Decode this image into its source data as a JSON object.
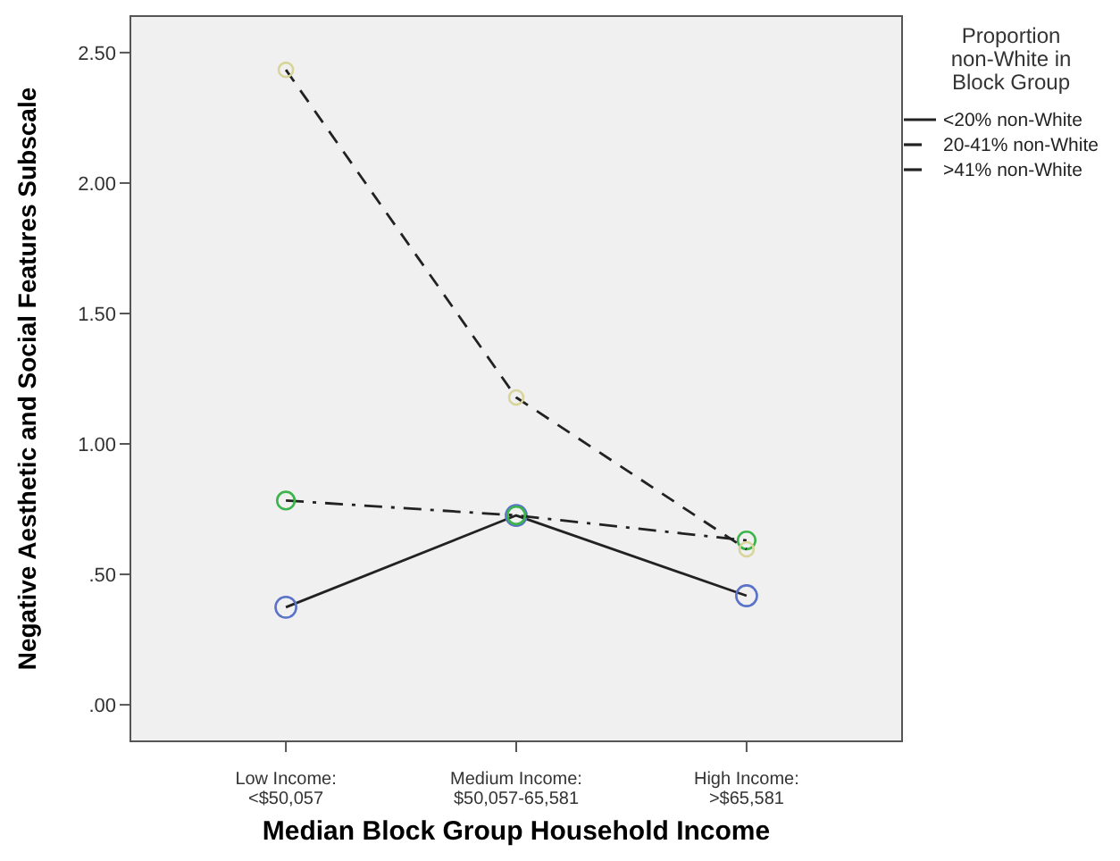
{
  "chart_data": {
    "type": "line",
    "xlabel": "Median Block Group Household Income",
    "ylabel": "Negative Aesthetic and Social Features Subscale",
    "legend_title": "Proportion non-White in Block Group",
    "categories": [
      "Low Income: <$50,057",
      "Medium Income: $50,057-65,581",
      "High Income: >$65,581"
    ],
    "series": [
      {
        "name": "<20% non-White",
        "color": "#5a73c8",
        "line_style": "solid",
        "values": [
          0.374,
          0.726,
          0.418
        ]
      },
      {
        "name": "20-41% non-White",
        "color": "#3cb44b",
        "line_style": "dashdot",
        "values": [
          0.783,
          0.726,
          0.63
        ]
      },
      {
        "name": ">41% non-White",
        "color": "#d8d49a",
        "line_style": "dashed",
        "values": [
          2.434,
          1.178,
          0.596
        ]
      }
    ],
    "ylim": [
      -0.14,
      2.64
    ],
    "yticks": [
      {
        "value": 0,
        "label": ".00"
      },
      {
        "value": 0.5,
        "label": ".50"
      },
      {
        "value": 1,
        "label": "1.00"
      },
      {
        "value": 1.5,
        "label": "1.50"
      },
      {
        "value": 2,
        "label": "2.00"
      },
      {
        "value": 2.5,
        "label": "2.50"
      }
    ],
    "marker": "circle",
    "legend": "top right",
    "grid": false
  }
}
